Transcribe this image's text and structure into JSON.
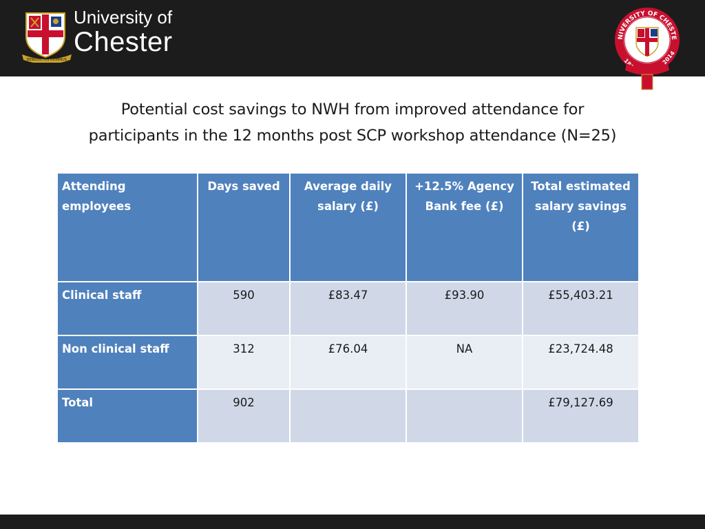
{
  "header": {
    "wordmark_line1": "University of",
    "wordmark_line2": "Chester",
    "logo_motto": "BENEDICTUS DOMINUS",
    "seal_text_top": "UNIVERSITY OF CHESTER",
    "seal_year_left": "1839",
    "seal_year_right": "2014"
  },
  "slide": {
    "title_line1": "Potential cost savings to NWH from improved attendance for",
    "title_line2": "participants in the 12 months post SCP workshop attendance   (N=25)"
  },
  "table": {
    "columns": [
      "Attending employees",
      "Days saved",
      "Average daily salary (£)",
      "+12.5% Agency Bank fee (£)",
      "Total estimated salary savings (£)"
    ],
    "rows": [
      {
        "label": "Clinical staff",
        "days_saved": "590",
        "avg_daily_salary": "£83.47",
        "agency_fee": "£93.90",
        "total_savings": "£55,403.21"
      },
      {
        "label": "Non clinical staff",
        "days_saved": "312",
        "avg_daily_salary": "£76.04",
        "agency_fee": "NA",
        "total_savings": "£23,724.48"
      },
      {
        "label": "Total",
        "days_saved": "902",
        "avg_daily_salary": "",
        "agency_fee": "",
        "total_savings": "£79,127.69"
      }
    ]
  },
  "colors": {
    "header_bar": "#1d1c1c",
    "table_header": "#4f81bd",
    "row_band_dark": "#d0d8e8",
    "row_band_light": "#e9edf4",
    "seal_red": "#c8102e"
  }
}
